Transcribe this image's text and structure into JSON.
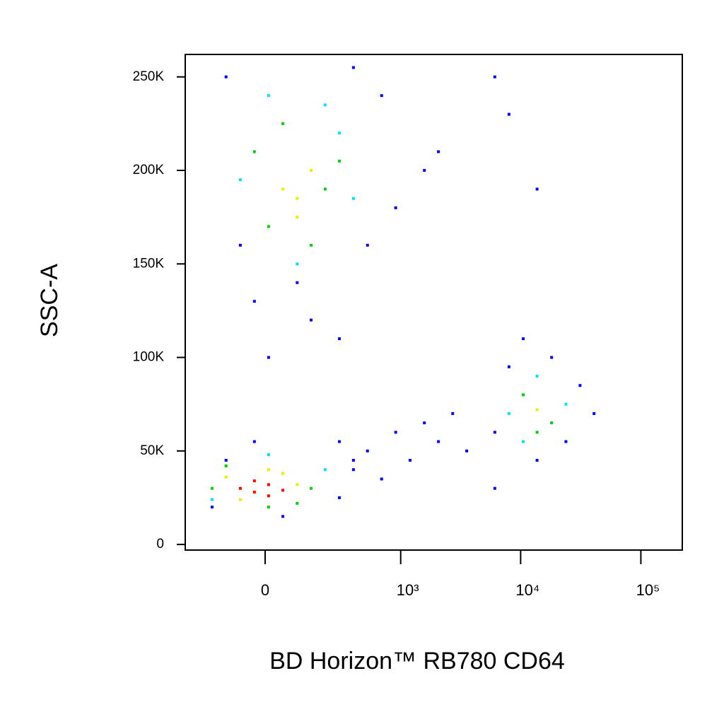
{
  "chart_data": {
    "type": "scatter",
    "x_label": "BD Horizon™ RB780 CD64",
    "y_label": "SSC-A",
    "xscale": "biexponential",
    "xlim": [
      -330,
      221000
    ],
    "ylim": [
      -3000,
      262000
    ],
    "xticks": [
      0,
      {
        "value": 1000,
        "label": "10³"
      },
      {
        "value": 10000,
        "label": "10⁴"
      },
      {
        "value": 100000,
        "label": "10⁵"
      }
    ],
    "yticks": [
      0,
      {
        "value": 50000,
        "label": "50K"
      },
      {
        "value": 100000,
        "label": "100K"
      },
      {
        "value": 150000,
        "label": "150K"
      },
      {
        "value": 200000,
        "label": "200K"
      },
      {
        "value": 250000,
        "label": "250K"
      }
    ],
    "series": [
      {
        "color": "#0000ff",
        "x": [
          -123,
          -74,
          522,
          908,
          1580,
          2070,
          98,
          -31,
          393,
          150,
          690,
          293,
          10,
          293,
          522,
          908,
          1200,
          1580,
          2070,
          2720,
          3560,
          690,
          393,
          6100,
          -180,
          -123,
          293,
          393,
          52,
          -31,
          8000,
          31200,
          6100,
          18100,
          13700,
          40800,
          23800,
          10500,
          8000,
          13700,
          6100
        ],
        "y": [
          250000,
          160000,
          160000,
          180000,
          200000,
          210000,
          140000,
          130000,
          255000,
          120000,
          240000,
          110000,
          100000,
          55000,
          50000,
          60000,
          45000,
          65000,
          55000,
          70000,
          50000,
          35000,
          40000,
          30000,
          20000,
          45000,
          25000,
          45000,
          15000,
          55000,
          95000,
          85000,
          60000,
          100000,
          45000,
          70000,
          55000,
          110000,
          230000,
          190000,
          250000
        ]
      },
      {
        "color": "#00e0ff",
        "x": [
          -74,
          393,
          293,
          213,
          98,
          10,
          8000,
          23800,
          13700,
          10500,
          213,
          -180,
          10
        ],
        "y": [
          195000,
          185000,
          220000,
          235000,
          150000,
          240000,
          70000,
          75000,
          90000,
          55000,
          40000,
          24000,
          48000
        ]
      },
      {
        "color": "#00d000",
        "x": [
          -180,
          150,
          -123,
          98,
          10,
          -31,
          10,
          213,
          293,
          150,
          52,
          10500,
          18100,
          13700
        ],
        "y": [
          30000,
          30000,
          42000,
          22000,
          20000,
          210000,
          170000,
          190000,
          205000,
          160000,
          225000,
          80000,
          65000,
          60000
        ]
      },
      {
        "color": "#e8f000",
        "x": [
          -123,
          -74,
          52,
          98,
          10,
          52,
          98,
          150,
          98,
          13700
        ],
        "y": [
          36000,
          24000,
          38000,
          32000,
          40000,
          190000,
          185000,
          200000,
          175000,
          72000
        ]
      },
      {
        "color": "#ff0000",
        "x": [
          -74,
          -31,
          10,
          52,
          -31,
          10
        ],
        "y": [
          30000,
          28000,
          32000,
          29000,
          34000,
          26000
        ]
      }
    ]
  }
}
